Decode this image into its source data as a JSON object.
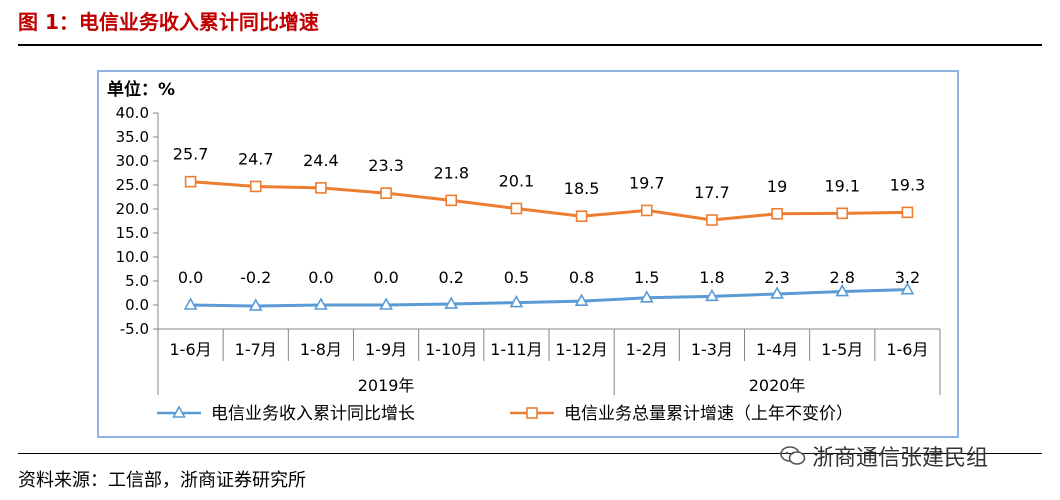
{
  "header": {
    "title": "图 1：电信业务收入累计同比增速"
  },
  "footer": {
    "source": "资料来源：工信部，浙商证券研究所",
    "watermark": "浙商通信张建民组"
  },
  "chart_data": {
    "type": "line",
    "unit_label": "单位：%",
    "categories": [
      "1-6月",
      "1-7月",
      "1-8月",
      "1-9月",
      "1-10月",
      "1-11月",
      "1-12月",
      "1-2月",
      "1-3月",
      "1-4月",
      "1-5月",
      "1-6月"
    ],
    "year_labels": [
      {
        "label": "2019年",
        "span": [
          0,
          6
        ]
      },
      {
        "label": "2020年",
        "span": [
          7,
          11
        ]
      }
    ],
    "ylim": [
      -5.0,
      40.0
    ],
    "yticks": [
      "40.0",
      "35.0",
      "30.0",
      "25.0",
      "20.0",
      "15.0",
      "10.0",
      "5.0",
      "0.0",
      "-5.0"
    ],
    "series": [
      {
        "name": "电信业务收入累计同比增长",
        "color": "#5b9bd5",
        "marker": "triangle",
        "values": [
          0.0,
          -0.2,
          0.0,
          0.0,
          0.2,
          0.5,
          0.8,
          1.5,
          1.8,
          2.3,
          2.8,
          3.2
        ],
        "labels": [
          "0.0",
          "-0.2",
          "0.0",
          "0.0",
          "0.2",
          "0.5",
          "0.8",
          "1.5",
          "1.8",
          "2.3",
          "2.8",
          "3.2"
        ]
      },
      {
        "name": "电信业务总量累计增速（上年不变价）",
        "color": "#ed7d31",
        "marker": "square",
        "values": [
          25.7,
          24.7,
          24.4,
          23.3,
          21.8,
          20.1,
          18.5,
          19.7,
          17.7,
          19.0,
          19.1,
          19.3
        ],
        "labels": [
          "25.7",
          "24.7",
          "24.4",
          "23.3",
          "21.8",
          "20.1",
          "18.5",
          "19.7",
          "17.7",
          "19",
          "19.1",
          "19.3"
        ]
      }
    ],
    "legend_position": "bottom"
  }
}
